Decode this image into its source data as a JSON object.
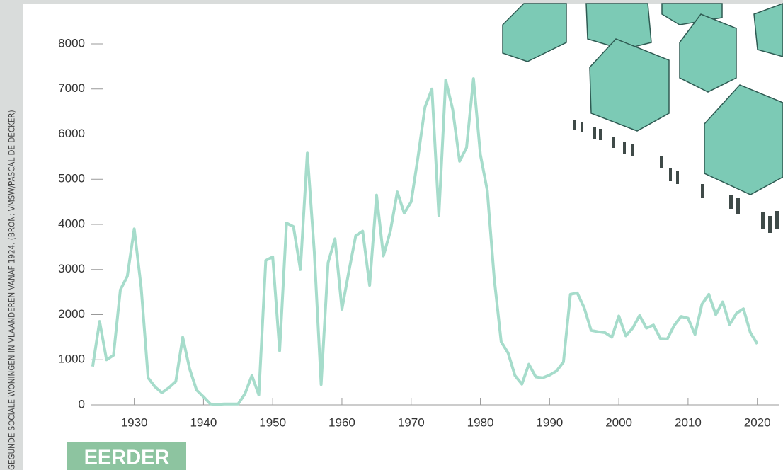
{
  "chart_data": {
    "type": "line",
    "side_note": "GEGUNDE SOCIALE WONINGEN IN VLAANDEREN VANAF 1924. (BRON: VMSW/PASCAL DE DECKER)",
    "badge": "EERDER",
    "x": [
      1924,
      1925,
      1926,
      1927,
      1928,
      1929,
      1930,
      1931,
      1932,
      1933,
      1934,
      1935,
      1936,
      1937,
      1938,
      1939,
      1940,
      1941,
      1942,
      1943,
      1944,
      1945,
      1946,
      1947,
      1948,
      1949,
      1950,
      1951,
      1952,
      1953,
      1954,
      1955,
      1956,
      1957,
      1958,
      1959,
      1960,
      1961,
      1962,
      1963,
      1964,
      1965,
      1966,
      1967,
      1968,
      1969,
      1970,
      1971,
      1972,
      1973,
      1974,
      1975,
      1976,
      1977,
      1978,
      1979,
      1980,
      1981,
      1982,
      1983,
      1984,
      1985,
      1986,
      1987,
      1988,
      1989,
      1990,
      1991,
      1992,
      1993,
      1994,
      1995,
      1996,
      1997,
      1998,
      1999,
      2000,
      2001,
      2002,
      2003,
      2004,
      2005,
      2006,
      2007,
      2008,
      2009,
      2010,
      2011,
      2012,
      2013,
      2014,
      2015,
      2016,
      2017,
      2018,
      2019,
      2020
    ],
    "values": [
      850,
      1850,
      1000,
      1100,
      2550,
      2850,
      3900,
      2600,
      600,
      400,
      270,
      380,
      520,
      1500,
      800,
      330,
      180,
      20,
      10,
      20,
      20,
      20,
      250,
      650,
      220,
      3200,
      3280,
      1200,
      4030,
      3950,
      3000,
      5580,
      3400,
      450,
      3150,
      3680,
      2120,
      2950,
      3750,
      3850,
      2650,
      4650,
      3300,
      3850,
      4720,
      4250,
      4500,
      5500,
      6600,
      7000,
      4200,
      7200,
      6550,
      5400,
      5700,
      7230,
      5550,
      4750,
      2800,
      1400,
      1150,
      650,
      460,
      900,
      620,
      600,
      660,
      750,
      950,
      2450,
      2480,
      2150,
      1650,
      1620,
      1600,
      1500,
      1970,
      1530,
      1700,
      1980,
      1700,
      1770,
      1470,
      1460,
      1760,
      1960,
      1920,
      1560,
      2230,
      2450,
      2000,
      2280,
      1780,
      2030,
      2130,
      1600,
      1350
    ],
    "color": "#a6dccb",
    "xlim": [
      1923.7,
      2023.1
    ],
    "xticks": [
      1930,
      1940,
      1950,
      1960,
      1970,
      1980,
      1990,
      2000,
      2010,
      2020
    ],
    "ylim": [
      0,
      8000
    ],
    "yticks": [
      0,
      1000,
      2000,
      3000,
      4000,
      5000,
      6000,
      7000,
      8000
    ]
  }
}
